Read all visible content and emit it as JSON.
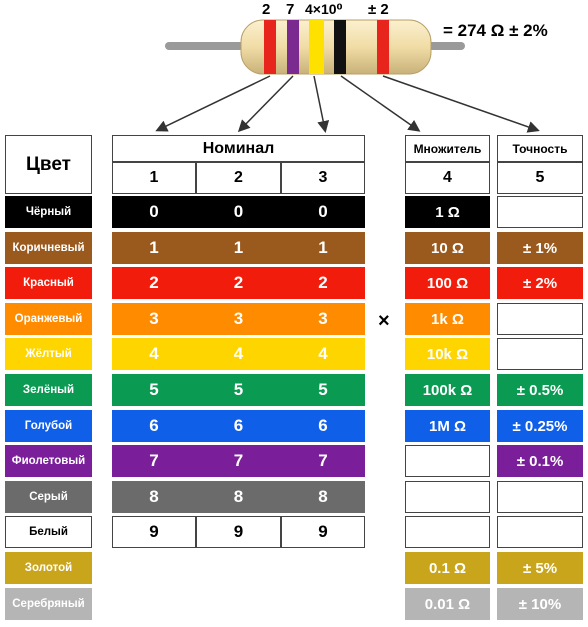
{
  "resistor": {
    "band_labels": [
      "2",
      "7",
      "4×10⁰",
      "± 2"
    ],
    "formula": "= 274 Ω ± 2%",
    "band_colors": [
      "#e8251c",
      "#7b2a90",
      "#ffe100",
      "#111111",
      "#e8251c"
    ],
    "body_color": "#f0dca5",
    "lead_color": "#9a9a9a"
  },
  "headers": {
    "color": "Цвет",
    "nominal": "Номинал",
    "multiplier": "Множитель",
    "tolerance": "Точность",
    "digit_cols": [
      "1",
      "2",
      "3"
    ],
    "multiplier_col": "4",
    "tolerance_col": "5"
  },
  "times_sign": "×",
  "rows": [
    {
      "name": "Чёрный",
      "color": "#000000",
      "text_color": "#ffffff",
      "digit": "0",
      "multiplier": "1 Ω",
      "tolerance": ""
    },
    {
      "name": "Коричневый",
      "color": "#9a5a1e",
      "text_color": "#ffffff",
      "digit": "1",
      "multiplier": "10 Ω",
      "tolerance": "± 1%"
    },
    {
      "name": "Красный",
      "color": "#f21c0c",
      "text_color": "#ffffff",
      "digit": "2",
      "multiplier": "100 Ω",
      "tolerance": "± 2%"
    },
    {
      "name": "Оранжевый",
      "color": "#ff8c00",
      "text_color": "#ffffff",
      "digit": "3",
      "multiplier": "1k Ω",
      "tolerance": ""
    },
    {
      "name": "Жёлтый",
      "color": "#ffd500",
      "text_color": "#ffffff",
      "digit": "4",
      "multiplier": "10k Ω",
      "tolerance": ""
    },
    {
      "name": "Зелёный",
      "color": "#0a9a52",
      "text_color": "#ffffff",
      "digit": "5",
      "multiplier": "100k Ω",
      "tolerance": "± 0.5%"
    },
    {
      "name": "Голубой",
      "color": "#0f5fe8",
      "text_color": "#ffffff",
      "digit": "6",
      "multiplier": "1M Ω",
      "tolerance": "± 0.25%"
    },
    {
      "name": "Фиолетовый",
      "color": "#7a1f99",
      "text_color": "#ffffff",
      "digit": "7",
      "multiplier": "",
      "tolerance": "± 0.1%"
    },
    {
      "name": "Серый",
      "color": "#6b6b6b",
      "text_color": "#ffffff",
      "digit": "8",
      "multiplier": "",
      "tolerance": ""
    },
    {
      "name": "Белый",
      "color": "#ffffff",
      "text_color": "#000000",
      "digit": "9",
      "multiplier": "",
      "tolerance": ""
    },
    {
      "name": "Золотой",
      "color": "#c9a51c",
      "text_color": "#ffffff",
      "digit": "",
      "multiplier": "0.1 Ω",
      "tolerance": "± 5%"
    },
    {
      "name": "Серебряный",
      "color": "#b5b5b5",
      "text_color": "#ffffff",
      "digit": "",
      "multiplier": "0.01 Ω",
      "tolerance": "± 10%"
    }
  ]
}
